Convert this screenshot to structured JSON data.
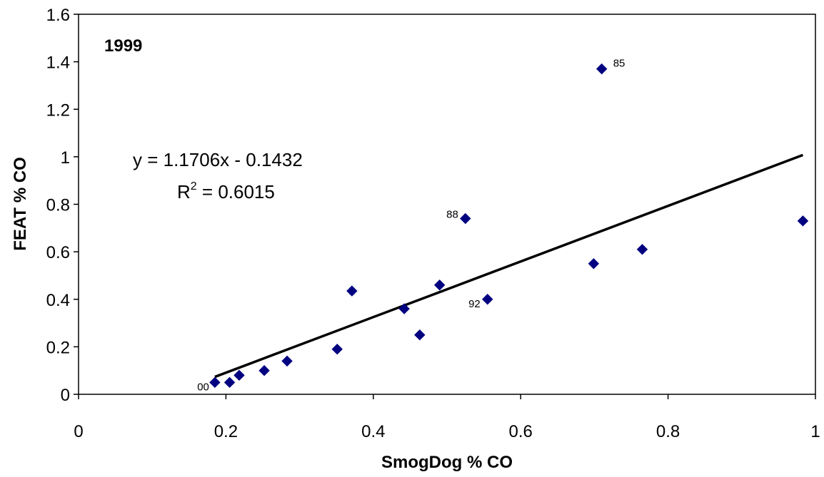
{
  "chart_data": {
    "type": "scatter",
    "xlabel": "SmogDog % CO",
    "ylabel": "FEAT % CO",
    "xlim": [
      0,
      1
    ],
    "ylim": [
      0,
      1.6
    ],
    "x_ticks": [
      "0",
      "0.2",
      "0.4",
      "0.6",
      "0.8",
      "1"
    ],
    "y_ticks": [
      "0",
      "0.2",
      "0.4",
      "0.6",
      "0.8",
      "1",
      "1.2",
      "1.4",
      "1.6"
    ],
    "grid": false,
    "panel_label": "1999",
    "marker_color": "#000080",
    "line_color": "#000000",
    "points": [
      {
        "x": 0.185,
        "y": 0.05,
        "label": "00"
      },
      {
        "x": 0.205,
        "y": 0.05,
        "label": ""
      },
      {
        "x": 0.218,
        "y": 0.08,
        "label": ""
      },
      {
        "x": 0.252,
        "y": 0.1,
        "label": ""
      },
      {
        "x": 0.283,
        "y": 0.14,
        "label": ""
      },
      {
        "x": 0.351,
        "y": 0.19,
        "label": ""
      },
      {
        "x": 0.371,
        "y": 0.435,
        "label": ""
      },
      {
        "x": 0.442,
        "y": 0.36,
        "label": ""
      },
      {
        "x": 0.463,
        "y": 0.25,
        "label": ""
      },
      {
        "x": 0.49,
        "y": 0.46,
        "label": ""
      },
      {
        "x": 0.525,
        "y": 0.74,
        "label": "88"
      },
      {
        "x": 0.555,
        "y": 0.4,
        "label": "92"
      },
      {
        "x": 0.699,
        "y": 0.55,
        "label": ""
      },
      {
        "x": 0.71,
        "y": 1.37,
        "label": "85"
      },
      {
        "x": 0.765,
        "y": 0.61,
        "label": ""
      },
      {
        "x": 0.983,
        "y": 0.73,
        "label": ""
      }
    ],
    "trendline": {
      "slope": 1.1706,
      "intercept": -0.1432,
      "x_range": [
        0.185,
        0.983
      ],
      "equation": "y = 1.1706x - 0.1432",
      "r2_prefix": "R",
      "r2_superscript": "2",
      "r2_value": " = 0.6015"
    }
  }
}
